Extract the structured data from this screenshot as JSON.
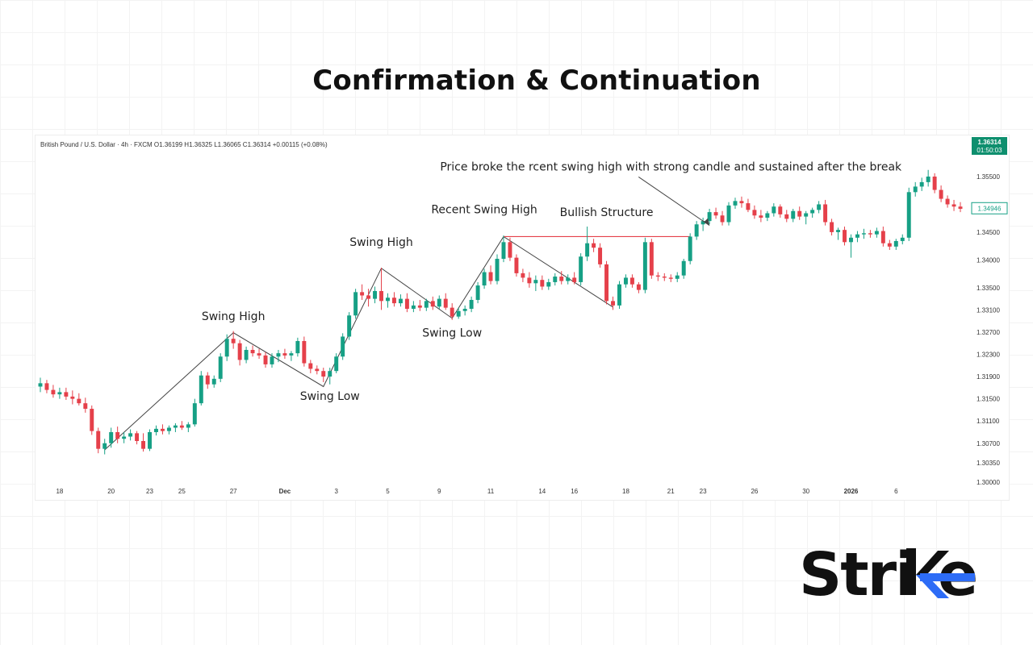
{
  "page": {
    "title": "Confirmation & Continuation"
  },
  "logo": {
    "text": "Strike",
    "accent_color": "#2d6cf6",
    "text_color": "#111111"
  },
  "chart_data": {
    "type": "candlestick",
    "symbol_line": "British Pound / U.S. Dollar · 4h · FXCM  O1.36199 H1.36325 L1.36065 C1.36314 +0.00115 (+0.08%)",
    "price_badge": {
      "price": "1.36314",
      "countdown": "01:50:03",
      "color": "#0e8f6e"
    },
    "secondary_badge": "1.34946",
    "y_ticks": [
      1.355,
      1.345,
      1.34,
      1.335,
      1.331,
      1.327,
      1.323,
      1.319,
      1.315,
      1.311,
      1.307,
      1.3035,
      1.3
    ],
    "y_tick_labels": [
      "1.35500",
      "1.34500",
      "1.34000",
      "1.33500",
      "1.33100",
      "1.32700",
      "1.32300",
      "1.31900",
      "1.31500",
      "1.31100",
      "1.30700",
      "1.30350",
      "1.30000"
    ],
    "x_ticks": [
      {
        "label": "18",
        "index": 3
      },
      {
        "label": "20",
        "index": 11
      },
      {
        "label": "23",
        "index": 17
      },
      {
        "label": "25",
        "index": 22
      },
      {
        "label": "27",
        "index": 30
      },
      {
        "label": "Dec",
        "index": 38
      },
      {
        "label": "3",
        "index": 46
      },
      {
        "label": "5",
        "index": 54
      },
      {
        "label": "9",
        "index": 62
      },
      {
        "label": "11",
        "index": 70
      },
      {
        "label": "14",
        "index": 78
      },
      {
        "label": "16",
        "index": 83
      },
      {
        "label": "18",
        "index": 91
      },
      {
        "label": "21",
        "index": 98
      },
      {
        "label": "23",
        "index": 103
      },
      {
        "label": "26",
        "index": 111
      },
      {
        "label": "30",
        "index": 119
      },
      {
        "label": "2026",
        "index": 126
      },
      {
        "label": "6",
        "index": 133
      }
    ],
    "up_color": "#16a085",
    "down_color": "#e5404a",
    "annotations": [
      {
        "text": "Swing High",
        "index": 30,
        "price": 1.3292
      },
      {
        "text": "Swing Low",
        "index": 45,
        "price": 1.3148
      },
      {
        "text": "Swing High",
        "index": 53,
        "price": 1.3425
      },
      {
        "text": "Swing Low",
        "index": 64,
        "price": 1.3262
      },
      {
        "text": "Recent Swing High",
        "index": 69,
        "price": 1.3484
      },
      {
        "text": "Bullish Structure",
        "index": 88,
        "price": 1.3479
      },
      {
        "text": "Price broke the rcent swing high with strong candle and sustained after the break",
        "index": 98,
        "price": 1.3561
      }
    ],
    "swing_points": [
      {
        "index": 10,
        "price": 1.3058
      },
      {
        "index": 30,
        "price": 1.3269
      },
      {
        "index": 44,
        "price": 1.3172
      },
      {
        "index": 53,
        "price": 1.3385
      },
      {
        "index": 64,
        "price": 1.3295
      },
      {
        "index": 72,
        "price": 1.3442
      },
      {
        "index": 89,
        "price": 1.3315
      }
    ],
    "resistance_line": {
      "price": 1.3442,
      "from_index": 72,
      "to_index": 101,
      "color": "#e5404a"
    },
    "candles": [
      {
        "o": 1.3172,
        "h": 1.3188,
        "l": 1.3162,
        "c": 1.3178
      },
      {
        "o": 1.3178,
        "h": 1.3184,
        "l": 1.316,
        "c": 1.3166
      },
      {
        "o": 1.3166,
        "h": 1.3175,
        "l": 1.3152,
        "c": 1.3158
      },
      {
        "o": 1.3158,
        "h": 1.317,
        "l": 1.315,
        "c": 1.3162
      },
      {
        "o": 1.3162,
        "h": 1.317,
        "l": 1.3148,
        "c": 1.3154
      },
      {
        "o": 1.3154,
        "h": 1.3165,
        "l": 1.314,
        "c": 1.315
      },
      {
        "o": 1.315,
        "h": 1.316,
        "l": 1.3138,
        "c": 1.3142
      },
      {
        "o": 1.3142,
        "h": 1.3152,
        "l": 1.3125,
        "c": 1.3132
      },
      {
        "o": 1.3132,
        "h": 1.3138,
        "l": 1.3085,
        "c": 1.3092
      },
      {
        "o": 1.3092,
        "h": 1.3098,
        "l": 1.3052,
        "c": 1.306
      },
      {
        "o": 1.306,
        "h": 1.3078,
        "l": 1.305,
        "c": 1.307
      },
      {
        "o": 1.307,
        "h": 1.3098,
        "l": 1.3062,
        "c": 1.309
      },
      {
        "o": 1.309,
        "h": 1.31,
        "l": 1.307,
        "c": 1.3078
      },
      {
        "o": 1.3078,
        "h": 1.309,
        "l": 1.307,
        "c": 1.3082
      },
      {
        "o": 1.3082,
        "h": 1.3095,
        "l": 1.3075,
        "c": 1.3088
      },
      {
        "o": 1.3088,
        "h": 1.3092,
        "l": 1.3068,
        "c": 1.3074
      },
      {
        "o": 1.3074,
        "h": 1.3088,
        "l": 1.3055,
        "c": 1.306
      },
      {
        "o": 1.306,
        "h": 1.3095,
        "l": 1.3056,
        "c": 1.309
      },
      {
        "o": 1.309,
        "h": 1.3102,
        "l": 1.3084,
        "c": 1.3096
      },
      {
        "o": 1.3096,
        "h": 1.3104,
        "l": 1.3086,
        "c": 1.3092
      },
      {
        "o": 1.3092,
        "h": 1.3102,
        "l": 1.3086,
        "c": 1.3098
      },
      {
        "o": 1.3098,
        "h": 1.3106,
        "l": 1.309,
        "c": 1.3102
      },
      {
        "o": 1.3102,
        "h": 1.311,
        "l": 1.3094,
        "c": 1.3098
      },
      {
        "o": 1.3098,
        "h": 1.3108,
        "l": 1.309,
        "c": 1.3104
      },
      {
        "o": 1.3104,
        "h": 1.315,
        "l": 1.31,
        "c": 1.3142
      },
      {
        "o": 1.3142,
        "h": 1.32,
        "l": 1.3138,
        "c": 1.3192
      },
      {
        "o": 1.3192,
        "h": 1.3198,
        "l": 1.3168,
        "c": 1.3176
      },
      {
        "o": 1.3176,
        "h": 1.3192,
        "l": 1.317,
        "c": 1.3186
      },
      {
        "o": 1.3186,
        "h": 1.3232,
        "l": 1.318,
        "c": 1.3226
      },
      {
        "o": 1.3226,
        "h": 1.3266,
        "l": 1.3218,
        "c": 1.3258
      },
      {
        "o": 1.3258,
        "h": 1.3272,
        "l": 1.324,
        "c": 1.325
      },
      {
        "o": 1.325,
        "h": 1.3256,
        "l": 1.321,
        "c": 1.322
      },
      {
        "o": 1.322,
        "h": 1.3244,
        "l": 1.3214,
        "c": 1.3238
      },
      {
        "o": 1.3238,
        "h": 1.3246,
        "l": 1.3226,
        "c": 1.3232
      },
      {
        "o": 1.3232,
        "h": 1.324,
        "l": 1.3222,
        "c": 1.3228
      },
      {
        "o": 1.3228,
        "h": 1.3234,
        "l": 1.3206,
        "c": 1.3212
      },
      {
        "o": 1.3212,
        "h": 1.3232,
        "l": 1.3206,
        "c": 1.3226
      },
      {
        "o": 1.3226,
        "h": 1.3238,
        "l": 1.3216,
        "c": 1.3232
      },
      {
        "o": 1.3232,
        "h": 1.324,
        "l": 1.3222,
        "c": 1.3228
      },
      {
        "o": 1.3228,
        "h": 1.3236,
        "l": 1.3218,
        "c": 1.3232
      },
      {
        "o": 1.3232,
        "h": 1.326,
        "l": 1.3226,
        "c": 1.3254
      },
      {
        "o": 1.3254,
        "h": 1.3262,
        "l": 1.3208,
        "c": 1.3214
      },
      {
        "o": 1.3214,
        "h": 1.322,
        "l": 1.3196,
        "c": 1.3204
      },
      {
        "o": 1.3204,
        "h": 1.321,
        "l": 1.3194,
        "c": 1.32
      },
      {
        "o": 1.32,
        "h": 1.3206,
        "l": 1.318,
        "c": 1.319
      },
      {
        "o": 1.319,
        "h": 1.3206,
        "l": 1.3176,
        "c": 1.32
      },
      {
        "o": 1.32,
        "h": 1.3232,
        "l": 1.3196,
        "c": 1.3226
      },
      {
        "o": 1.3226,
        "h": 1.3268,
        "l": 1.322,
        "c": 1.3262
      },
      {
        "o": 1.3262,
        "h": 1.3306,
        "l": 1.3256,
        "c": 1.33
      },
      {
        "o": 1.33,
        "h": 1.3348,
        "l": 1.3294,
        "c": 1.3342
      },
      {
        "o": 1.3342,
        "h": 1.3356,
        "l": 1.3328,
        "c": 1.3336
      },
      {
        "o": 1.3336,
        "h": 1.3348,
        "l": 1.3316,
        "c": 1.333
      },
      {
        "o": 1.333,
        "h": 1.3352,
        "l": 1.3322,
        "c": 1.3344
      },
      {
        "o": 1.3344,
        "h": 1.3386,
        "l": 1.331,
        "c": 1.3326
      },
      {
        "o": 1.3326,
        "h": 1.334,
        "l": 1.3314,
        "c": 1.3332
      },
      {
        "o": 1.3332,
        "h": 1.3342,
        "l": 1.3316,
        "c": 1.3322
      },
      {
        "o": 1.3322,
        "h": 1.3338,
        "l": 1.3316,
        "c": 1.333
      },
      {
        "o": 1.333,
        "h": 1.334,
        "l": 1.3306,
        "c": 1.3312
      },
      {
        "o": 1.3312,
        "h": 1.3326,
        "l": 1.3306,
        "c": 1.3318
      },
      {
        "o": 1.3318,
        "h": 1.3328,
        "l": 1.3308,
        "c": 1.3314
      },
      {
        "o": 1.3314,
        "h": 1.333,
        "l": 1.3308,
        "c": 1.3326
      },
      {
        "o": 1.3326,
        "h": 1.3334,
        "l": 1.331,
        "c": 1.3316
      },
      {
        "o": 1.3316,
        "h": 1.3336,
        "l": 1.3312,
        "c": 1.333
      },
      {
        "o": 1.333,
        "h": 1.334,
        "l": 1.331,
        "c": 1.3314
      },
      {
        "o": 1.3314,
        "h": 1.3322,
        "l": 1.3292,
        "c": 1.3298
      },
      {
        "o": 1.3298,
        "h": 1.3314,
        "l": 1.3294,
        "c": 1.3308
      },
      {
        "o": 1.3308,
        "h": 1.3318,
        "l": 1.33,
        "c": 1.3312
      },
      {
        "o": 1.3312,
        "h": 1.3334,
        "l": 1.3306,
        "c": 1.3328
      },
      {
        "o": 1.3328,
        "h": 1.336,
        "l": 1.3322,
        "c": 1.3354
      },
      {
        "o": 1.3354,
        "h": 1.3384,
        "l": 1.3348,
        "c": 1.3378
      },
      {
        "o": 1.3378,
        "h": 1.339,
        "l": 1.3356,
        "c": 1.3362
      },
      {
        "o": 1.3362,
        "h": 1.341,
        "l": 1.3356,
        "c": 1.3402
      },
      {
        "o": 1.3402,
        "h": 1.3444,
        "l": 1.3396,
        "c": 1.3432
      },
      {
        "o": 1.3432,
        "h": 1.344,
        "l": 1.3398,
        "c": 1.3404
      },
      {
        "o": 1.3404,
        "h": 1.341,
        "l": 1.337,
        "c": 1.3376
      },
      {
        "o": 1.3376,
        "h": 1.3384,
        "l": 1.336,
        "c": 1.3368
      },
      {
        "o": 1.3368,
        "h": 1.3378,
        "l": 1.335,
        "c": 1.3358
      },
      {
        "o": 1.3358,
        "h": 1.3372,
        "l": 1.3344,
        "c": 1.3364
      },
      {
        "o": 1.3364,
        "h": 1.3372,
        "l": 1.3346,
        "c": 1.3352
      },
      {
        "o": 1.3352,
        "h": 1.3366,
        "l": 1.3346,
        "c": 1.336
      },
      {
        "o": 1.336,
        "h": 1.3376,
        "l": 1.3354,
        "c": 1.337
      },
      {
        "o": 1.337,
        "h": 1.338,
        "l": 1.3356,
        "c": 1.3362
      },
      {
        "o": 1.3362,
        "h": 1.3374,
        "l": 1.3356,
        "c": 1.3368
      },
      {
        "o": 1.3368,
        "h": 1.3378,
        "l": 1.3356,
        "c": 1.336
      },
      {
        "o": 1.336,
        "h": 1.3412,
        "l": 1.3354,
        "c": 1.3406
      },
      {
        "o": 1.3406,
        "h": 1.346,
        "l": 1.3398,
        "c": 1.343
      },
      {
        "o": 1.343,
        "h": 1.3438,
        "l": 1.3414,
        "c": 1.3422
      },
      {
        "o": 1.3422,
        "h": 1.343,
        "l": 1.3386,
        "c": 1.3392
      },
      {
        "o": 1.3392,
        "h": 1.3398,
        "l": 1.332,
        "c": 1.3326
      },
      {
        "o": 1.3326,
        "h": 1.3334,
        "l": 1.331,
        "c": 1.3318
      },
      {
        "o": 1.3318,
        "h": 1.3362,
        "l": 1.3312,
        "c": 1.3356
      },
      {
        "o": 1.3356,
        "h": 1.3374,
        "l": 1.335,
        "c": 1.3368
      },
      {
        "o": 1.3368,
        "h": 1.3374,
        "l": 1.335,
        "c": 1.3356
      },
      {
        "o": 1.3356,
        "h": 1.336,
        "l": 1.334,
        "c": 1.3346
      },
      {
        "o": 1.3346,
        "h": 1.344,
        "l": 1.334,
        "c": 1.3432
      },
      {
        "o": 1.3432,
        "h": 1.3438,
        "l": 1.3366,
        "c": 1.3372
      },
      {
        "o": 1.3372,
        "h": 1.3378,
        "l": 1.3362,
        "c": 1.337
      },
      {
        "o": 1.337,
        "h": 1.3376,
        "l": 1.3362,
        "c": 1.3368
      },
      {
        "o": 1.3368,
        "h": 1.3374,
        "l": 1.336,
        "c": 1.3366
      },
      {
        "o": 1.3366,
        "h": 1.3378,
        "l": 1.336,
        "c": 1.3372
      },
      {
        "o": 1.3372,
        "h": 1.3402,
        "l": 1.3366,
        "c": 1.3398
      },
      {
        "o": 1.3398,
        "h": 1.3448,
        "l": 1.3392,
        "c": 1.3442
      },
      {
        "o": 1.3442,
        "h": 1.347,
        "l": 1.3436,
        "c": 1.3464
      },
      {
        "o": 1.3464,
        "h": 1.3476,
        "l": 1.3452,
        "c": 1.347
      },
      {
        "o": 1.347,
        "h": 1.3492,
        "l": 1.3464,
        "c": 1.3486
      },
      {
        "o": 1.3486,
        "h": 1.3494,
        "l": 1.3474,
        "c": 1.348
      },
      {
        "o": 1.348,
        "h": 1.3488,
        "l": 1.3462,
        "c": 1.3468
      },
      {
        "o": 1.3468,
        "h": 1.3504,
        "l": 1.3462,
        "c": 1.3498
      },
      {
        "o": 1.3498,
        "h": 1.3512,
        "l": 1.3492,
        "c": 1.3506
      },
      {
        "o": 1.3506,
        "h": 1.3514,
        "l": 1.3494,
        "c": 1.3502
      },
      {
        "o": 1.3502,
        "h": 1.351,
        "l": 1.3486,
        "c": 1.349
      },
      {
        "o": 1.349,
        "h": 1.3498,
        "l": 1.3474,
        "c": 1.348
      },
      {
        "o": 1.348,
        "h": 1.349,
        "l": 1.3468,
        "c": 1.3476
      },
      {
        "o": 1.3476,
        "h": 1.3488,
        "l": 1.347,
        "c": 1.3484
      },
      {
        "o": 1.3484,
        "h": 1.3502,
        "l": 1.3478,
        "c": 1.3496
      },
      {
        "o": 1.3496,
        "h": 1.35,
        "l": 1.3476,
        "c": 1.3482
      },
      {
        "o": 1.3482,
        "h": 1.349,
        "l": 1.3468,
        "c": 1.3474
      },
      {
        "o": 1.3474,
        "h": 1.3492,
        "l": 1.3468,
        "c": 1.3488
      },
      {
        "o": 1.3488,
        "h": 1.3496,
        "l": 1.3472,
        "c": 1.3478
      },
      {
        "o": 1.3478,
        "h": 1.3488,
        "l": 1.3464,
        "c": 1.3484
      },
      {
        "o": 1.3484,
        "h": 1.3494,
        "l": 1.3476,
        "c": 1.349
      },
      {
        "o": 1.349,
        "h": 1.3506,
        "l": 1.3484,
        "c": 1.35
      },
      {
        "o": 1.35,
        "h": 1.3508,
        "l": 1.3462,
        "c": 1.3468
      },
      {
        "o": 1.3468,
        "h": 1.3474,
        "l": 1.3444,
        "c": 1.345
      },
      {
        "o": 1.345,
        "h": 1.3458,
        "l": 1.3436,
        "c": 1.3454
      },
      {
        "o": 1.3454,
        "h": 1.346,
        "l": 1.3426,
        "c": 1.3432
      },
      {
        "o": 1.3432,
        "h": 1.3446,
        "l": 1.3404,
        "c": 1.344
      },
      {
        "o": 1.344,
        "h": 1.3452,
        "l": 1.3432,
        "c": 1.3446
      },
      {
        "o": 1.3446,
        "h": 1.3456,
        "l": 1.3438,
        "c": 1.3448
      },
      {
        "o": 1.3448,
        "h": 1.3454,
        "l": 1.344,
        "c": 1.3446
      },
      {
        "o": 1.3446,
        "h": 1.3458,
        "l": 1.344,
        "c": 1.3452
      },
      {
        "o": 1.3452,
        "h": 1.346,
        "l": 1.3424,
        "c": 1.343
      },
      {
        "o": 1.343,
        "h": 1.3436,
        "l": 1.3418,
        "c": 1.3424
      },
      {
        "o": 1.3424,
        "h": 1.3438,
        "l": 1.3418,
        "c": 1.3434
      },
      {
        "o": 1.3434,
        "h": 1.3446,
        "l": 1.3428,
        "c": 1.344
      },
      {
        "o": 1.344,
        "h": 1.353,
        "l": 1.3434,
        "c": 1.3522
      },
      {
        "o": 1.3522,
        "h": 1.354,
        "l": 1.3514,
        "c": 1.3532
      },
      {
        "o": 1.3532,
        "h": 1.3548,
        "l": 1.3524,
        "c": 1.354
      },
      {
        "o": 1.354,
        "h": 1.3562,
        "l": 1.3532,
        "c": 1.355
      },
      {
        "o": 1.355,
        "h": 1.3556,
        "l": 1.352,
        "c": 1.3526
      },
      {
        "o": 1.3526,
        "h": 1.3534,
        "l": 1.3504,
        "c": 1.351
      },
      {
        "o": 1.351,
        "h": 1.3516,
        "l": 1.3494,
        "c": 1.35
      },
      {
        "o": 1.35,
        "h": 1.3508,
        "l": 1.3488,
        "c": 1.3496
      },
      {
        "o": 1.3496,
        "h": 1.3504,
        "l": 1.3486,
        "c": 1.3492
      }
    ]
  }
}
